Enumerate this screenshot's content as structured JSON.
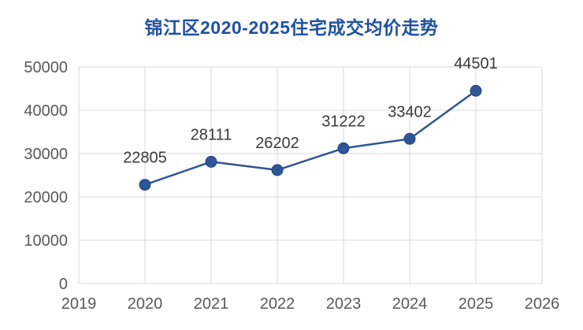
{
  "chart_data": {
    "type": "line",
    "title": "锦江区2020-2025住宅成交均价走势",
    "x": [
      2020,
      2021,
      2022,
      2023,
      2024,
      2025
    ],
    "values": [
      22805,
      28111,
      26202,
      31222,
      33402,
      44501
    ],
    "xlabel": "",
    "ylabel": "",
    "xlim": [
      2019,
      2026
    ],
    "ylim": [
      0,
      50000
    ],
    "x_ticks": [
      2019,
      2020,
      2021,
      2022,
      2023,
      2024,
      2025,
      2026
    ],
    "y_ticks": [
      0,
      10000,
      20000,
      30000,
      40000,
      50000
    ],
    "grid": true,
    "legend": "none",
    "colors": {
      "title": "#2151a0",
      "line": "#2e5596",
      "marker": "#2e5596",
      "marker_edge": "#24477e",
      "grid": "#d9d9d9",
      "tick_label": "#595959",
      "data_label": "#3a3a3a",
      "background": "#ffffff"
    }
  }
}
